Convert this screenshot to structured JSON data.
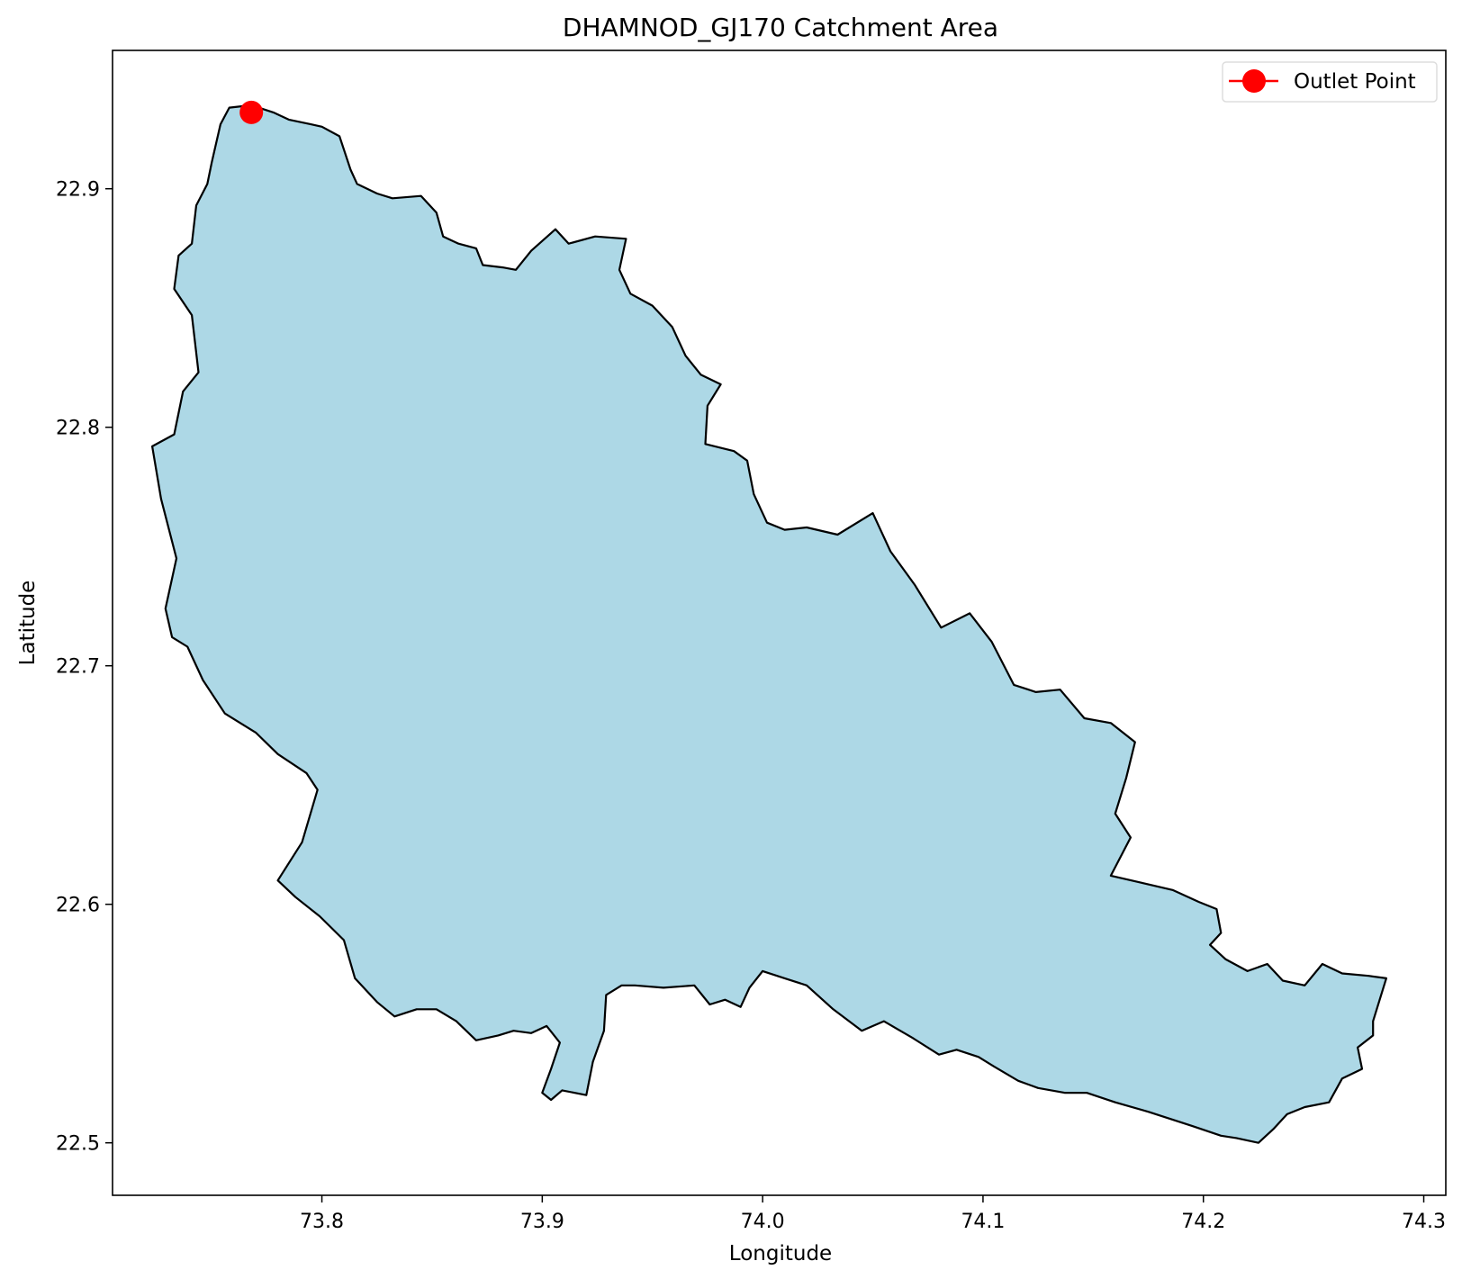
{
  "figure": {
    "title": "DHAMNOD_GJ170 Catchment Area",
    "xlabel": "Longitude",
    "ylabel": "Latitude"
  },
  "colors": {
    "catchment_fill": "#add8e6",
    "catchment_edge": "#000000",
    "outlet": "#ff0000",
    "legend_border": "#dddddd"
  },
  "legend": {
    "entries": [
      {
        "label": "Outlet Point",
        "marker": "red-circle-line"
      }
    ],
    "placement": "top-right"
  },
  "chart_data": {
    "type": "map",
    "title": "DHAMNOD_GJ170 Catchment Area",
    "xlabel": "Longitude",
    "ylabel": "Latitude",
    "xlim": [
      73.705,
      74.31
    ],
    "ylim": [
      22.478,
      22.958
    ],
    "xticks": [
      {
        "value": 73.8,
        "label": "73.8"
      },
      {
        "value": 73.9,
        "label": "73.9"
      },
      {
        "value": 74.0,
        "label": "74.0"
      },
      {
        "value": 74.1,
        "label": "74.1"
      },
      {
        "value": 74.2,
        "label": "74.2"
      },
      {
        "value": 74.3,
        "label": "74.3"
      }
    ],
    "yticks": [
      {
        "value": 22.5,
        "label": "22.5"
      },
      {
        "value": 22.6,
        "label": "22.6"
      },
      {
        "value": 22.7,
        "label": "22.7"
      },
      {
        "value": 22.8,
        "label": "22.8"
      },
      {
        "value": 22.9,
        "label": "22.9"
      }
    ],
    "grid": false,
    "catchment_boundary": [
      [
        73.758,
        22.934
      ],
      [
        73.768,
        22.935
      ],
      [
        73.778,
        22.932
      ],
      [
        73.785,
        22.929
      ],
      [
        73.795,
        22.927
      ],
      [
        73.8,
        22.926
      ],
      [
        73.808,
        22.922
      ],
      [
        73.813,
        22.908
      ],
      [
        73.816,
        22.902
      ],
      [
        73.825,
        22.898
      ],
      [
        73.832,
        22.896
      ],
      [
        73.845,
        22.897
      ],
      [
        73.852,
        22.89
      ],
      [
        73.855,
        22.88
      ],
      [
        73.862,
        22.877
      ],
      [
        73.87,
        22.875
      ],
      [
        73.873,
        22.868
      ],
      [
        73.882,
        22.867
      ],
      [
        73.888,
        22.866
      ],
      [
        73.895,
        22.874
      ],
      [
        73.906,
        22.883
      ],
      [
        73.912,
        22.877
      ],
      [
        73.924,
        22.88
      ],
      [
        73.938,
        22.879
      ],
      [
        73.935,
        22.866
      ],
      [
        73.94,
        22.856
      ],
      [
        73.95,
        22.851
      ],
      [
        73.959,
        22.842
      ],
      [
        73.965,
        22.83
      ],
      [
        73.972,
        22.822
      ],
      [
        73.981,
        22.818
      ],
      [
        73.975,
        22.809
      ],
      [
        73.974,
        22.793
      ],
      [
        73.987,
        22.79
      ],
      [
        73.993,
        22.786
      ],
      [
        73.996,
        22.772
      ],
      [
        74.002,
        22.76
      ],
      [
        74.01,
        22.757
      ],
      [
        74.02,
        22.758
      ],
      [
        74.034,
        22.755
      ],
      [
        74.05,
        22.764
      ],
      [
        74.058,
        22.748
      ],
      [
        74.069,
        22.734
      ],
      [
        74.081,
        22.716
      ],
      [
        74.094,
        22.722
      ],
      [
        74.104,
        22.71
      ],
      [
        74.114,
        22.692
      ],
      [
        74.124,
        22.689
      ],
      [
        74.135,
        22.69
      ],
      [
        74.146,
        22.678
      ],
      [
        74.158,
        22.676
      ],
      [
        74.169,
        22.668
      ],
      [
        74.165,
        22.653
      ],
      [
        74.16,
        22.638
      ],
      [
        74.167,
        22.628
      ],
      [
        74.158,
        22.612
      ],
      [
        74.172,
        22.609
      ],
      [
        74.186,
        22.606
      ],
      [
        74.198,
        22.601
      ],
      [
        74.206,
        22.598
      ],
      [
        74.208,
        22.588
      ],
      [
        74.203,
        22.583
      ],
      [
        74.21,
        22.577
      ],
      [
        74.22,
        22.572
      ],
      [
        74.229,
        22.575
      ],
      [
        74.236,
        22.568
      ],
      [
        74.246,
        22.566
      ],
      [
        74.254,
        22.575
      ],
      [
        74.263,
        22.571
      ],
      [
        74.275,
        22.57
      ],
      [
        74.283,
        22.569
      ],
      [
        74.277,
        22.551
      ],
      [
        74.277,
        22.545
      ],
      [
        74.27,
        22.54
      ],
      [
        74.272,
        22.531
      ],
      [
        74.263,
        22.527
      ],
      [
        74.257,
        22.517
      ],
      [
        74.246,
        22.515
      ],
      [
        74.238,
        22.512
      ],
      [
        74.232,
        22.506
      ],
      [
        74.225,
        22.5
      ],
      [
        74.215,
        22.502
      ],
      [
        74.208,
        22.503
      ],
      [
        74.195,
        22.507
      ],
      [
        74.175,
        22.513
      ],
      [
        74.16,
        22.517
      ],
      [
        74.147,
        22.521
      ],
      [
        74.137,
        22.521
      ],
      [
        74.125,
        22.523
      ],
      [
        74.116,
        22.526
      ],
      [
        74.105,
        22.532
      ],
      [
        74.098,
        22.536
      ],
      [
        74.088,
        22.539
      ],
      [
        74.08,
        22.537
      ],
      [
        74.068,
        22.544
      ],
      [
        74.055,
        22.551
      ],
      [
        74.045,
        22.547
      ],
      [
        74.032,
        22.556
      ],
      [
        74.02,
        22.566
      ],
      [
        74.01,
        22.569
      ],
      [
        74.0,
        22.572
      ],
      [
        73.994,
        22.565
      ],
      [
        73.99,
        22.557
      ],
      [
        73.983,
        22.56
      ],
      [
        73.976,
        22.558
      ],
      [
        73.969,
        22.566
      ],
      [
        73.955,
        22.565
      ],
      [
        73.942,
        22.566
      ],
      [
        73.936,
        22.566
      ],
      [
        73.929,
        22.562
      ],
      [
        73.928,
        22.547
      ],
      [
        73.923,
        22.534
      ],
      [
        73.92,
        22.52
      ],
      [
        73.909,
        22.522
      ],
      [
        73.904,
        22.518
      ],
      [
        73.9,
        22.521
      ],
      [
        73.904,
        22.531
      ],
      [
        73.908,
        22.542
      ],
      [
        73.902,
        22.549
      ],
      [
        73.895,
        22.546
      ],
      [
        73.887,
        22.547
      ],
      [
        73.88,
        22.545
      ],
      [
        73.87,
        22.543
      ],
      [
        73.861,
        22.551
      ],
      [
        73.852,
        22.556
      ],
      [
        73.843,
        22.556
      ],
      [
        73.833,
        22.553
      ],
      [
        73.825,
        22.559
      ],
      [
        73.815,
        22.569
      ],
      [
        73.81,
        22.585
      ],
      [
        73.799,
        22.595
      ],
      [
        73.788,
        22.603
      ],
      [
        73.78,
        22.61
      ],
      [
        73.791,
        22.626
      ],
      [
        73.798,
        22.648
      ],
      [
        73.793,
        22.655
      ],
      [
        73.78,
        22.663
      ],
      [
        73.77,
        22.672
      ],
      [
        73.756,
        22.68
      ],
      [
        73.746,
        22.694
      ],
      [
        73.739,
        22.708
      ],
      [
        73.732,
        22.712
      ],
      [
        73.729,
        22.724
      ],
      [
        73.734,
        22.745
      ],
      [
        73.727,
        22.77
      ],
      [
        73.723,
        22.792
      ],
      [
        73.733,
        22.797
      ],
      [
        73.737,
        22.815
      ],
      [
        73.744,
        22.823
      ],
      [
        73.741,
        22.847
      ],
      [
        73.733,
        22.858
      ],
      [
        73.735,
        22.872
      ],
      [
        73.741,
        22.877
      ],
      [
        73.743,
        22.893
      ],
      [
        73.748,
        22.902
      ],
      [
        73.75,
        22.911
      ],
      [
        73.754,
        22.927
      ],
      [
        73.758,
        22.934
      ]
    ],
    "outlet_point": {
      "name": "Outlet Point",
      "lon": 73.768,
      "lat": 22.932
    }
  }
}
